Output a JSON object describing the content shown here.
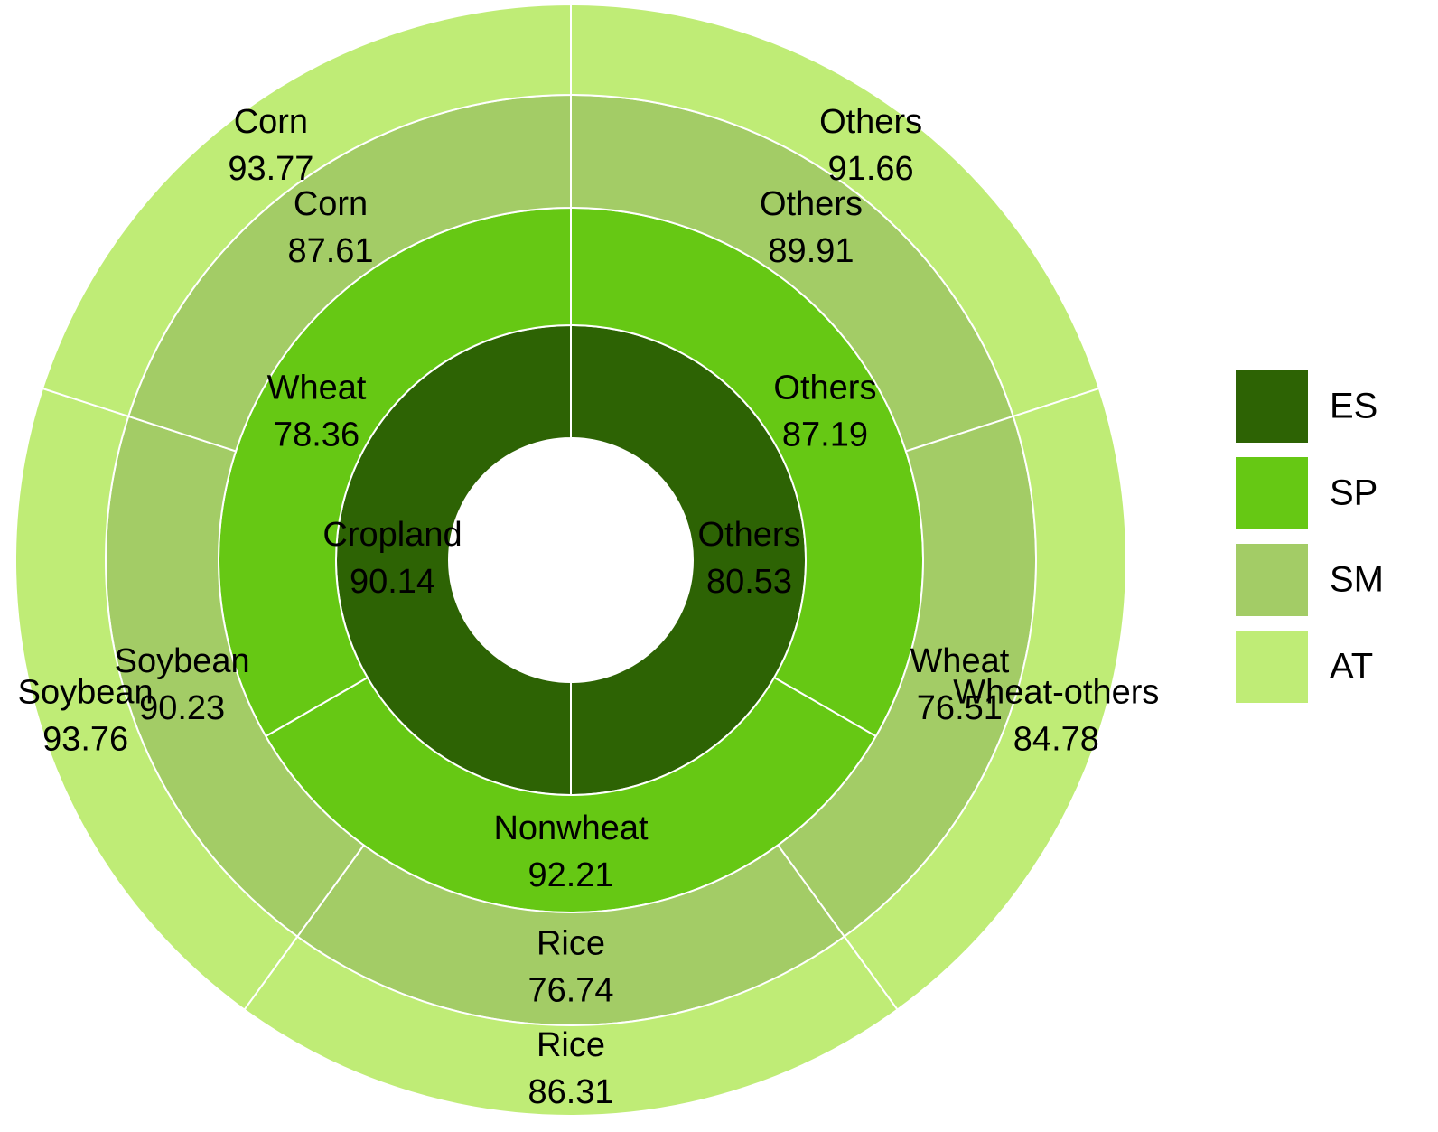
{
  "chart_data": {
    "type": "sunburst",
    "series": [
      {
        "name": "ES",
        "color": "#2d6304",
        "labels": [
          "Others",
          "Cropland"
        ],
        "values": [
          80.53,
          90.14
        ]
      },
      {
        "name": "SP",
        "color": "#66c814",
        "labels": [
          "Others",
          "Nonwheat",
          "Wheat"
        ],
        "values": [
          87.19,
          92.21,
          78.36
        ]
      },
      {
        "name": "SM",
        "color": "#a3cc66",
        "labels": [
          "Others",
          "Wheat",
          "Rice",
          "Soybean",
          "Corn"
        ],
        "values": [
          89.91,
          76.51,
          76.74,
          90.23,
          87.61
        ]
      },
      {
        "name": "AT",
        "color": "#bfec76",
        "labels": [
          "Others",
          "Wheat-others",
          "Rice",
          "Soybean",
          "Corn"
        ],
        "values": [
          91.66,
          84.78,
          86.31,
          93.76,
          93.77
        ]
      }
    ],
    "legend": "right"
  }
}
